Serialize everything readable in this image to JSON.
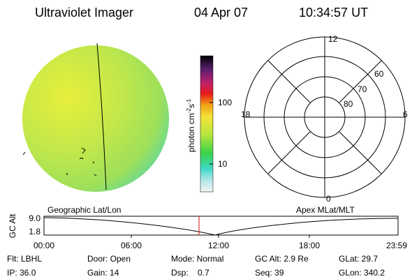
{
  "header": {
    "instrument": "Ultraviolet Imager",
    "date": "04 Apr 07",
    "time": "10:34:57 UT"
  },
  "colorbar": {
    "unit": "photon cm",
    "exp1": "-2",
    "unit2": "s",
    "exp2": "-1",
    "ticks": [
      "100",
      "10"
    ]
  },
  "polar": {
    "hours": [
      "12",
      "18",
      "6",
      "0"
    ],
    "latitudes": [
      "60",
      "70",
      "80"
    ]
  },
  "altitude_plot": {
    "axis_label": "GC Alt",
    "left_title": "Geographic Lat/Lon",
    "right_title": "Apex MLat/MLT",
    "y_ticks": [
      "9.0",
      "1.8"
    ],
    "time_ticks": [
      "00:00",
      "06:00",
      "12:00",
      "18:00",
      "23:59"
    ]
  },
  "info": {
    "rows": [
      [
        "Flt: LBHL",
        "Door: Open",
        "Mode: Normal",
        "GC Alt: 2.9 Re",
        "GLat: 29.7"
      ],
      [
        "IP: 36.0",
        "Gain: 14",
        "Dsp:    0.7",
        "Seq: 39",
        "GLon: 340.2"
      ]
    ]
  }
}
